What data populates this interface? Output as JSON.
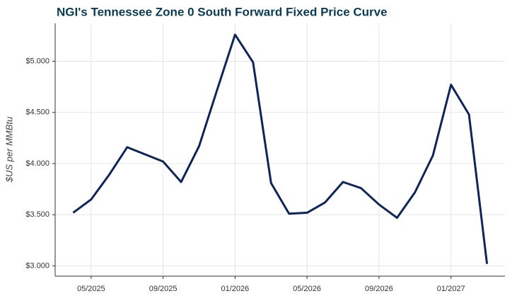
{
  "chart_data": {
    "type": "line",
    "title": "NGI's Tennessee Zone 0 South Forward Fixed Price Curve",
    "y_label": "$US per MMBtu",
    "x": [
      "2025-04",
      "2025-05",
      "2025-06",
      "2025-07",
      "2025-08",
      "2025-09",
      "2025-10",
      "2025-11",
      "2025-12",
      "2026-01",
      "2026-02",
      "2026-03",
      "2026-04",
      "2026-05",
      "2026-06",
      "2026-07",
      "2026-08",
      "2026-09",
      "2026-10",
      "2026-11",
      "2026-12",
      "2027-01",
      "2027-02",
      "2027-03"
    ],
    "values": [
      3.52,
      3.65,
      3.89,
      4.16,
      4.09,
      4.02,
      3.82,
      4.17,
      4.72,
      5.26,
      4.99,
      3.81,
      3.51,
      3.52,
      3.62,
      3.82,
      3.76,
      3.6,
      3.47,
      3.72,
      4.08,
      4.77,
      4.48,
      3.02
    ],
    "color": "#0f2557",
    "xlim": [
      "2025-03",
      "2027-04"
    ],
    "xticks": [
      {
        "value": "2025-05",
        "label": "05/2025"
      },
      {
        "value": "2025-09",
        "label": "09/2025"
      },
      {
        "value": "2026-01",
        "label": "01/2026"
      },
      {
        "value": "2026-05",
        "label": "05/2026"
      },
      {
        "value": "2026-09",
        "label": "09/2026"
      },
      {
        "value": "2027-01",
        "label": "01/2027"
      }
    ],
    "ylim": [
      2.9,
      5.37
    ],
    "yticks": [
      {
        "value": 3.0,
        "label": "$3.000"
      },
      {
        "value": 3.5,
        "label": "$3.500"
      },
      {
        "value": 4.0,
        "label": "$4.000"
      },
      {
        "value": 4.5,
        "label": "$4.500"
      },
      {
        "value": 5.0,
        "label": "$5.000"
      }
    ],
    "grid": true
  }
}
